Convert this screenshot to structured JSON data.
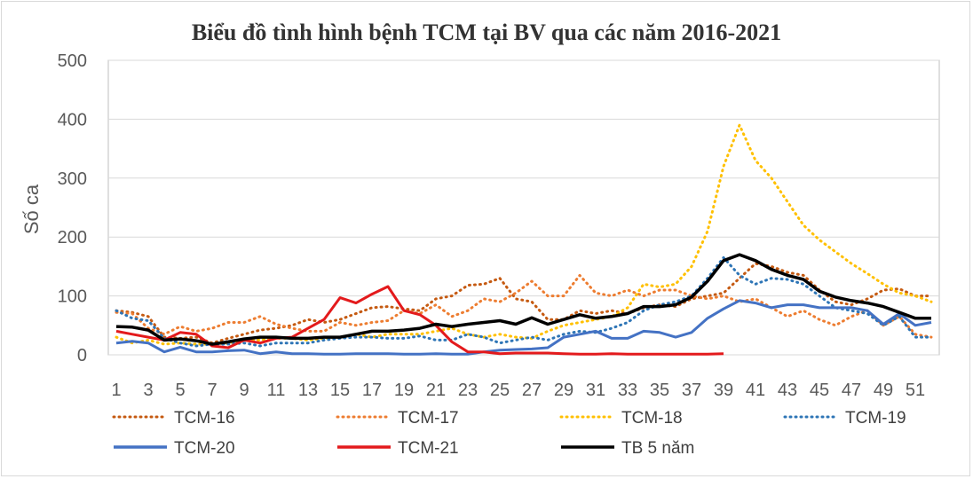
{
  "chart_data": {
    "type": "line",
    "title": "Biểu đồ tình hình bệnh TCM tại BV qua các năm 2016-2021",
    "xlabel": "",
    "ylabel": "Số ca",
    "ylim": [
      0,
      500
    ],
    "yticks": [
      0,
      100,
      200,
      300,
      400,
      500
    ],
    "xlim": [
      1,
      52
    ],
    "xtick_labels": [
      "1",
      "3",
      "5",
      "7",
      "9",
      "11",
      "13",
      "15",
      "17",
      "19",
      "21",
      "23",
      "25",
      "27",
      "29",
      "31",
      "33",
      "35",
      "37",
      "39",
      "41",
      "43",
      "45",
      "47",
      "49",
      "51"
    ],
    "grid": "horizontal",
    "legend_position": "bottom",
    "series": [
      {
        "name": "TCM-16",
        "color": "#c55a11",
        "style": "dotted",
        "values": [
          75,
          72,
          65,
          30,
          28,
          30,
          20,
          28,
          35,
          42,
          45,
          50,
          60,
          55,
          60,
          70,
          80,
          82,
          78,
          75,
          95,
          100,
          118,
          120,
          130,
          95,
          90,
          60,
          60,
          75,
          70,
          75,
          70,
          80,
          85,
          82,
          95,
          100,
          105,
          130,
          155,
          150,
          140,
          135,
          110,
          90,
          85,
          95,
          110,
          112,
          100,
          100
        ]
      },
      {
        "name": "TCM-17",
        "color": "#ed7d31",
        "style": "dotted",
        "values": [
          72,
          70,
          45,
          35,
          48,
          40,
          45,
          55,
          55,
          65,
          52,
          45,
          40,
          40,
          55,
          50,
          55,
          58,
          75,
          70,
          85,
          65,
          75,
          95,
          90,
          105,
          125,
          100,
          100,
          135,
          105,
          100,
          110,
          100,
          110,
          110,
          100,
          95,
          100,
          90,
          95,
          80,
          65,
          75,
          60,
          50,
          65,
          75,
          50,
          65,
          35,
          30
        ]
      },
      {
        "name": "TCM-18",
        "color": "#ffc000",
        "style": "dotted",
        "values": [
          30,
          20,
          25,
          18,
          20,
          18,
          18,
          20,
          25,
          25,
          28,
          28,
          25,
          28,
          30,
          35,
          30,
          35,
          35,
          35,
          40,
          45,
          35,
          30,
          35,
          30,
          28,
          40,
          50,
          55,
          60,
          65,
          80,
          120,
          115,
          120,
          150,
          210,
          320,
          390,
          330,
          300,
          260,
          220,
          195,
          175,
          155,
          138,
          120,
          105,
          100,
          90
        ]
      },
      {
        "name": "TCM-19",
        "color": "#2e75b6",
        "style": "dotted",
        "values": [
          75,
          62,
          58,
          28,
          20,
          15,
          18,
          18,
          20,
          15,
          20,
          20,
          20,
          25,
          28,
          30,
          30,
          28,
          28,
          32,
          25,
          25,
          35,
          30,
          20,
          25,
          30,
          25,
          35,
          40,
          38,
          45,
          55,
          75,
          85,
          90,
          100,
          130,
          165,
          135,
          120,
          130,
          128,
          120,
          100,
          80,
          75,
          70,
          50,
          65,
          30,
          30
        ]
      },
      {
        "name": "TCM-20",
        "color": "#4472c4",
        "style": "solid",
        "values": [
          20,
          23,
          20,
          5,
          13,
          5,
          5,
          7,
          8,
          2,
          5,
          2,
          2,
          1,
          1,
          2,
          2,
          2,
          1,
          1,
          2,
          1,
          1,
          5,
          8,
          9,
          10,
          12,
          30,
          35,
          40,
          28,
          28,
          40,
          38,
          30,
          38,
          62,
          78,
          92,
          88,
          80,
          85,
          85,
          80,
          80,
          80,
          75,
          52,
          70,
          50,
          55
        ]
      },
      {
        "name": "TCM-21",
        "color": "#e31a1c",
        "style": "solid",
        "values": [
          40,
          35,
          30,
          25,
          38,
          35,
          15,
          12,
          25,
          20,
          28,
          30,
          45,
          60,
          97,
          88,
          103,
          116,
          75,
          68,
          50,
          22,
          5,
          5,
          2,
          3,
          3,
          3,
          2,
          1,
          1,
          2,
          1,
          1,
          1,
          1,
          1,
          1,
          2
        ]
      },
      {
        "name": "TB 5 năm",
        "color": "#000000",
        "style": "solid",
        "values": [
          48,
          47,
          42,
          25,
          27,
          24,
          18,
          22,
          27,
          30,
          30,
          28,
          28,
          30,
          30,
          35,
          40,
          40,
          42,
          45,
          52,
          48,
          52,
          55,
          58,
          52,
          63,
          52,
          60,
          68,
          62,
          65,
          70,
          82,
          82,
          85,
          98,
          125,
          160,
          170,
          160,
          145,
          135,
          128,
          108,
          98,
          92,
          88,
          82,
          72,
          62,
          62
        ]
      }
    ]
  }
}
